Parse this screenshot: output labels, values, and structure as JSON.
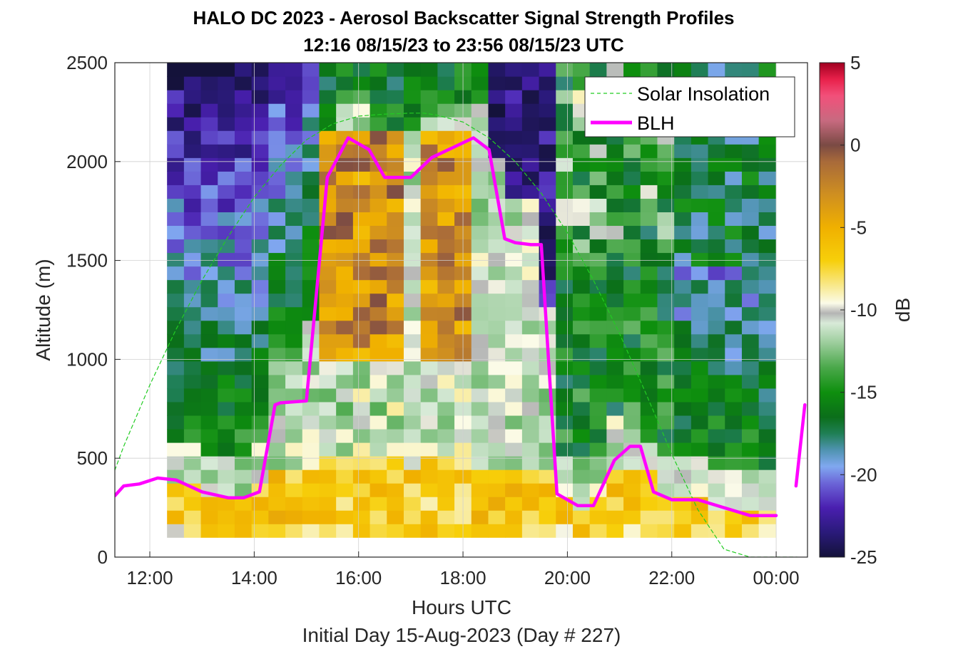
{
  "chart_data": {
    "type": "heatmap",
    "title": "HALO DC 2023 - Aerosol Backscatter Signal Strength Profiles",
    "subtitle": "12:16 08/15/23 to 23:56 08/15/23  UTC",
    "xlabel": "Hours UTC",
    "footer": "Initial Day 15-Aug-2023 (Day # 227)",
    "ylabel": "Altitude (m)",
    "colorbar_label": "dB",
    "xlim": [
      11.33,
      24.6
    ],
    "ylim": [
      0,
      2500
    ],
    "x_ticks": [
      12,
      14,
      16,
      18,
      20,
      22,
      24
    ],
    "x_tick_labels": [
      "12:00",
      "14:00",
      "16:00",
      "18:00",
      "20:00",
      "22:00",
      "00:00"
    ],
    "y_ticks": [
      0,
      500,
      1000,
      1500,
      2000,
      2500
    ],
    "y_tick_labels": [
      "0",
      "500",
      "1000",
      "1500",
      "2000",
      "2500"
    ],
    "clim": [
      -25,
      5
    ],
    "c_ticks": [
      5,
      0,
      -5,
      -10,
      -15,
      -20,
      -25
    ],
    "c_tick_labels": [
      "5",
      "0",
      "-5",
      "-10",
      "-15",
      "-20",
      "-25"
    ],
    "grid": true,
    "legend_position": "top-right",
    "heatmap_x_range": [
      12.33,
      23.99
    ],
    "heatmap_y_range": [
      100,
      2500
    ],
    "heatmap_band_hours": [
      [
        15.3,
        16.9
      ],
      [
        17.2,
        18.0
      ],
      [
        18.0,
        18.3
      ]
    ],
    "series": [
      {
        "name": "Solar Insolation",
        "style": "dashed",
        "color": "#22cc22",
        "x": [
          11.33,
          11.5,
          12.0,
          12.5,
          13.0,
          13.5,
          14.0,
          14.5,
          15.0,
          15.5,
          16.0,
          16.5,
          17.0,
          17.25,
          17.5,
          18.0,
          18.5,
          19.0,
          19.5,
          20.0,
          20.5,
          21.0,
          21.5,
          22.0,
          22.5,
          23.0,
          23.5,
          24.0,
          24.4
        ],
        "y": [
          440,
          560,
          870,
          1150,
          1400,
          1620,
          1820,
          1980,
          2110,
          2190,
          2230,
          2240,
          2245,
          2245,
          2235,
          2200,
          2120,
          2000,
          1840,
          1640,
          1400,
          1130,
          830,
          520,
          240,
          40,
          0,
          0,
          0
        ]
      },
      {
        "name": "BLH",
        "style": "solid",
        "color": "#ff00ff",
        "x": [
          11.33,
          11.5,
          11.8,
          12.15,
          12.5,
          13.0,
          13.5,
          13.8,
          14.1,
          14.4,
          14.5,
          15.0,
          15.4,
          15.8,
          16.2,
          16.5,
          17.0,
          17.4,
          17.8,
          18.2,
          18.5,
          18.8,
          19.0,
          19.3,
          19.5,
          19.8,
          20.2,
          20.5,
          20.9,
          21.2,
          21.4,
          21.65,
          22.0,
          22.5,
          23.0,
          23.5,
          23.8,
          24.0
        ],
        "y": [
          310,
          360,
          370,
          400,
          390,
          330,
          300,
          300,
          330,
          770,
          780,
          790,
          1920,
          2120,
          2060,
          1920,
          1920,
          2020,
          2070,
          2120,
          2060,
          1610,
          1590,
          1580,
          1580,
          320,
          260,
          260,
          490,
          560,
          560,
          330,
          290,
          290,
          250,
          210,
          210,
          210
        ]
      },
      {
        "name": "BLH",
        "style": "solid",
        "color": "#ff00ff",
        "x": [
          24.38,
          24.55
        ],
        "y": [
          360,
          770
        ]
      }
    ]
  }
}
